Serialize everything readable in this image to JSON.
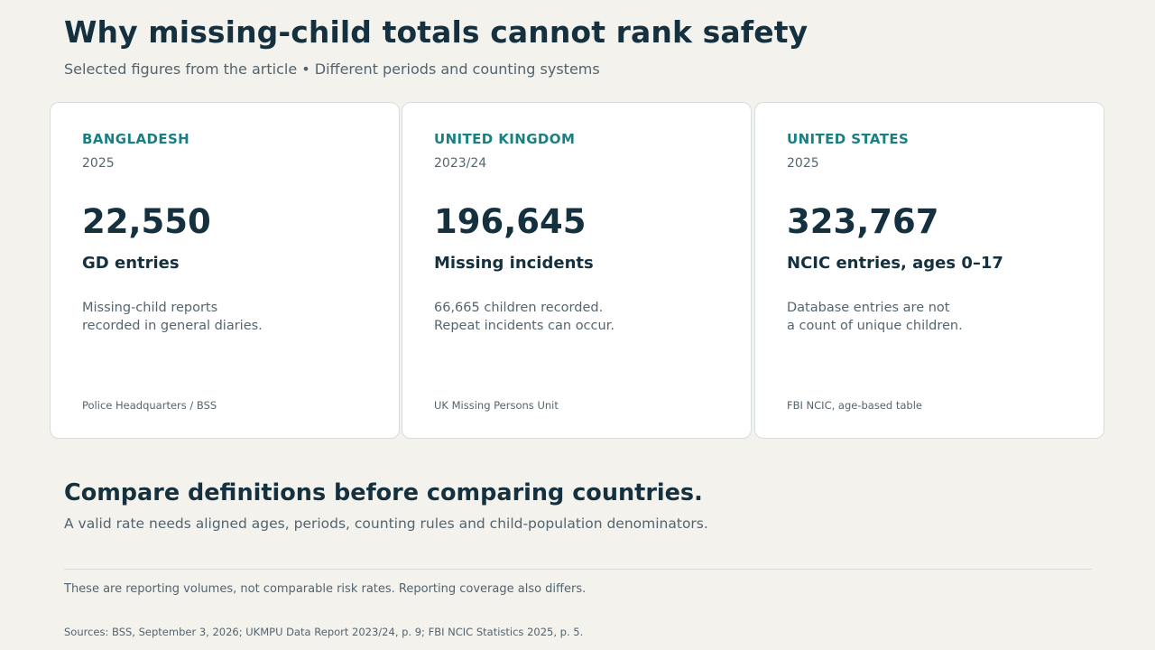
{
  "header": {
    "title": "Why missing-child totals cannot rank safety",
    "subtitle": "Selected figures from the article • Different periods and counting systems"
  },
  "cards": [
    {
      "country": "BANGLADESH",
      "period": "2025",
      "value": "22,550",
      "metric": "GD entries",
      "note_lines": [
        "Missing-child reports",
        "recorded in general diaries."
      ],
      "source": "Police Headquarters / BSS"
    },
    {
      "country": "UNITED KINGDOM",
      "period": "2023/24",
      "value": "196,645",
      "metric": "Missing incidents",
      "note_lines": [
        "66,665 children recorded.",
        "Repeat incidents can occur."
      ],
      "source": "UK Missing Persons Unit"
    },
    {
      "country": "UNITED STATES",
      "period": "2025",
      "value": "323,767",
      "metric": "NCIC entries, ages 0–17",
      "note_lines": [
        "Database entries are not",
        "a count of unique children."
      ],
      "source": "FBI NCIC, age-based table"
    }
  ],
  "comparison": {
    "title": "Compare definitions before comparing countries.",
    "text": "A valid rate needs aligned ages, periods, counting rules and child-population denominators."
  },
  "footer": {
    "note": "These are reporting volumes, not comparable risk rates. Reporting coverage also differs.",
    "sources": "Sources: BSS, September 3, 2026; UKMPU Data Report 2023/24, p. 9; FBI NCIC Statistics 2025, p. 5."
  }
}
